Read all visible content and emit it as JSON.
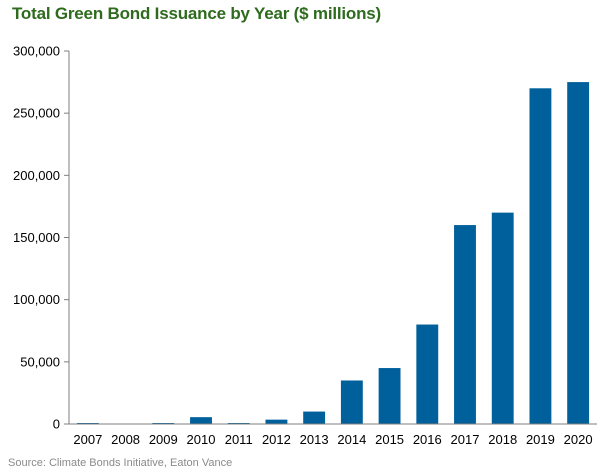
{
  "chart_data": {
    "type": "bar",
    "title": "Total Green Bond Issuance by Year ($ millions)",
    "source": "Source: Climate Bonds Initiative, Eaton Vance",
    "categories": [
      "2007",
      "2008",
      "2009",
      "2010",
      "2011",
      "2012",
      "2013",
      "2014",
      "2015",
      "2016",
      "2017",
      "2018",
      "2019",
      "2020"
    ],
    "values": [
      800,
      400,
      800,
      5500,
      800,
      3500,
      10000,
      35000,
      45000,
      80000,
      160000,
      170000,
      270000,
      275000
    ],
    "ylim": [
      0,
      300000
    ],
    "yticks": [
      0,
      50000,
      100000,
      150000,
      200000,
      250000,
      300000
    ],
    "ytick_labels": [
      "0",
      "50,000",
      "100,000",
      "150,000",
      "200,000",
      "250,000",
      "300,000"
    ],
    "grid": false,
    "bar_color": "#00609c"
  }
}
